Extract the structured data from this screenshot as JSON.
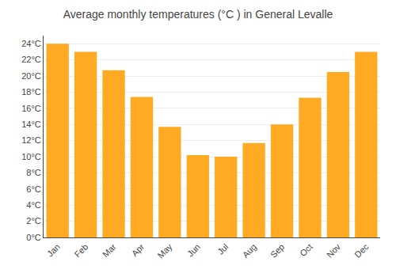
{
  "chart_data": {
    "type": "bar",
    "title": "Average monthly temperatures (°C ) in General Levalle",
    "categories": [
      "Jan",
      "Feb",
      "Mar",
      "Apr",
      "May",
      "Jun",
      "Jul",
      "Aug",
      "Sep",
      "Oct",
      "Nov",
      "Dec"
    ],
    "values": [
      24.0,
      23.0,
      20.7,
      17.4,
      13.7,
      10.2,
      10.0,
      11.7,
      14.0,
      17.3,
      20.5,
      23.0
    ],
    "color": "#FFAA22",
    "ylim": [
      0,
      25
    ],
    "yticks": [
      {
        "value": 0,
        "label": "0°C"
      },
      {
        "value": 2,
        "label": "2°C"
      },
      {
        "value": 4,
        "label": "4°C"
      },
      {
        "value": 6,
        "label": "6°C"
      },
      {
        "value": 8,
        "label": "8°C"
      },
      {
        "value": 10,
        "label": "10°C"
      },
      {
        "value": 12,
        "label": "12°C"
      },
      {
        "value": 14,
        "label": "14°C"
      },
      {
        "value": 16,
        "label": "16°C"
      },
      {
        "value": 18,
        "label": "18°C"
      },
      {
        "value": 20,
        "label": "20°C"
      },
      {
        "value": 22,
        "label": "22°C"
      },
      {
        "value": 24,
        "label": "24°C"
      }
    ],
    "grid": true
  }
}
